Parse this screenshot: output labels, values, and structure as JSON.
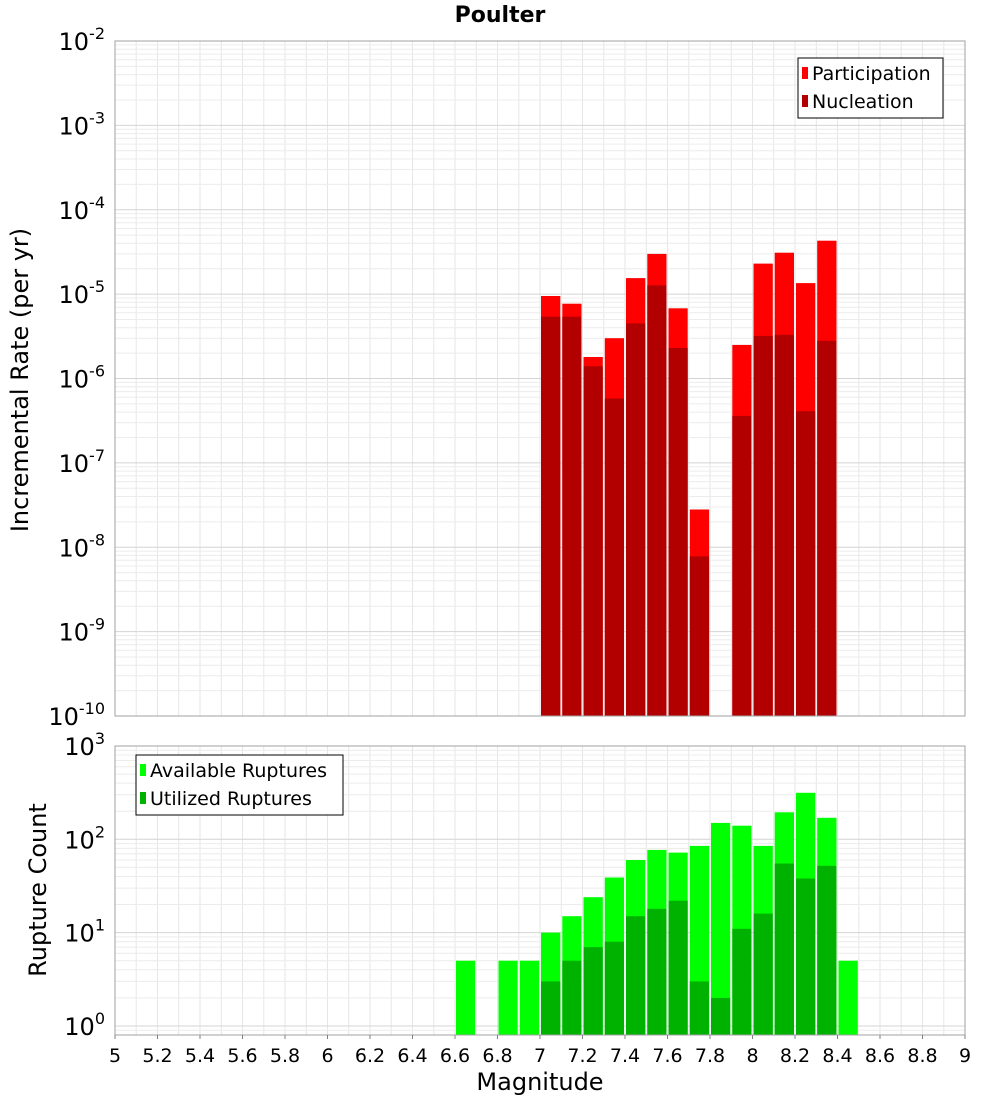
{
  "chart_data": [
    {
      "type": "bar",
      "title": "Poulter",
      "xlabel": "",
      "ylabel": "Incremental Rate (per yr)",
      "yscale": "log",
      "ylim": [
        1e-10,
        0.01
      ],
      "y_tick_exponents": [
        "-2",
        "-3",
        "-4",
        "-5",
        "-6",
        "-7",
        "-8",
        "-9",
        "-10"
      ],
      "y_tick_base": "10",
      "xlim": [
        5,
        9
      ],
      "bin_width": 0.1,
      "grid": true,
      "legend_position": "top-right",
      "colors": {
        "Participation": "#ff0000",
        "Nucleation": "#b20000"
      },
      "series": [
        {
          "name": "Participation",
          "x": [
            7.05,
            7.15,
            7.25,
            7.35,
            7.45,
            7.55,
            7.65,
            7.75,
            7.95,
            8.05,
            8.15,
            8.25,
            8.35
          ],
          "values": [
            9.5e-06,
            7.7e-06,
            1.8e-06,
            3e-06,
            1.55e-05,
            3e-05,
            6.8e-06,
            2.8e-08,
            2.5e-06,
            2.3e-05,
            3.1e-05,
            1.35e-05,
            4.3e-05
          ]
        },
        {
          "name": "Nucleation",
          "x": [
            7.05,
            7.15,
            7.25,
            7.35,
            7.45,
            7.55,
            7.65,
            7.75,
            7.95,
            8.05,
            8.15,
            8.25,
            8.35
          ],
          "values": [
            5.4e-06,
            5.4e-06,
            1.4e-06,
            5.8e-07,
            4.5e-06,
            1.27e-05,
            2.3e-06,
            7.8e-09,
            3.6e-07,
            3.2e-06,
            3.3e-06,
            4.1e-07,
            2.8e-06
          ]
        }
      ]
    },
    {
      "type": "bar",
      "title": "",
      "xlabel": "Magnitude",
      "ylabel": "Rupture Count",
      "yscale": "log",
      "ylim": [
        0.8,
        1000
      ],
      "y_tick_exponents": [
        "3",
        "2",
        "1",
        "0"
      ],
      "y_tick_base": "10",
      "xlim": [
        5,
        9
      ],
      "x_ticks": [
        "5",
        "5.2",
        "5.4",
        "5.6",
        "5.8",
        "6",
        "6.2",
        "6.4",
        "6.6",
        "6.8",
        "7",
        "7.2",
        "7.4",
        "7.6",
        "7.8",
        "8",
        "8.2",
        "8.4",
        "8.6",
        "8.8",
        "9"
      ],
      "bin_width": 0.1,
      "grid": true,
      "legend_position": "top-left",
      "colors": {
        "Available Ruptures": "#00ff00",
        "Utilized Ruptures": "#00b200"
      },
      "series": [
        {
          "name": "Available Ruptures",
          "x": [
            6.65,
            6.85,
            6.95,
            7.05,
            7.15,
            7.25,
            7.35,
            7.45,
            7.55,
            7.65,
            7.75,
            7.85,
            7.95,
            8.05,
            8.15,
            8.25,
            8.35,
            8.45
          ],
          "values": [
            5,
            5,
            5,
            10,
            15,
            24,
            39,
            60,
            77,
            72,
            85,
            150,
            140,
            85,
            195,
            315,
            170,
            5
          ]
        },
        {
          "name": "Utilized Ruptures",
          "x": [
            7.05,
            7.15,
            7.25,
            7.35,
            7.45,
            7.55,
            7.65,
            7.75,
            7.85,
            7.95,
            8.05,
            8.15,
            8.25,
            8.35
          ],
          "values": [
            3,
            5,
            7,
            8,
            15,
            18,
            22,
            3,
            2,
            11,
            16,
            55,
            38,
            52
          ]
        }
      ]
    }
  ]
}
